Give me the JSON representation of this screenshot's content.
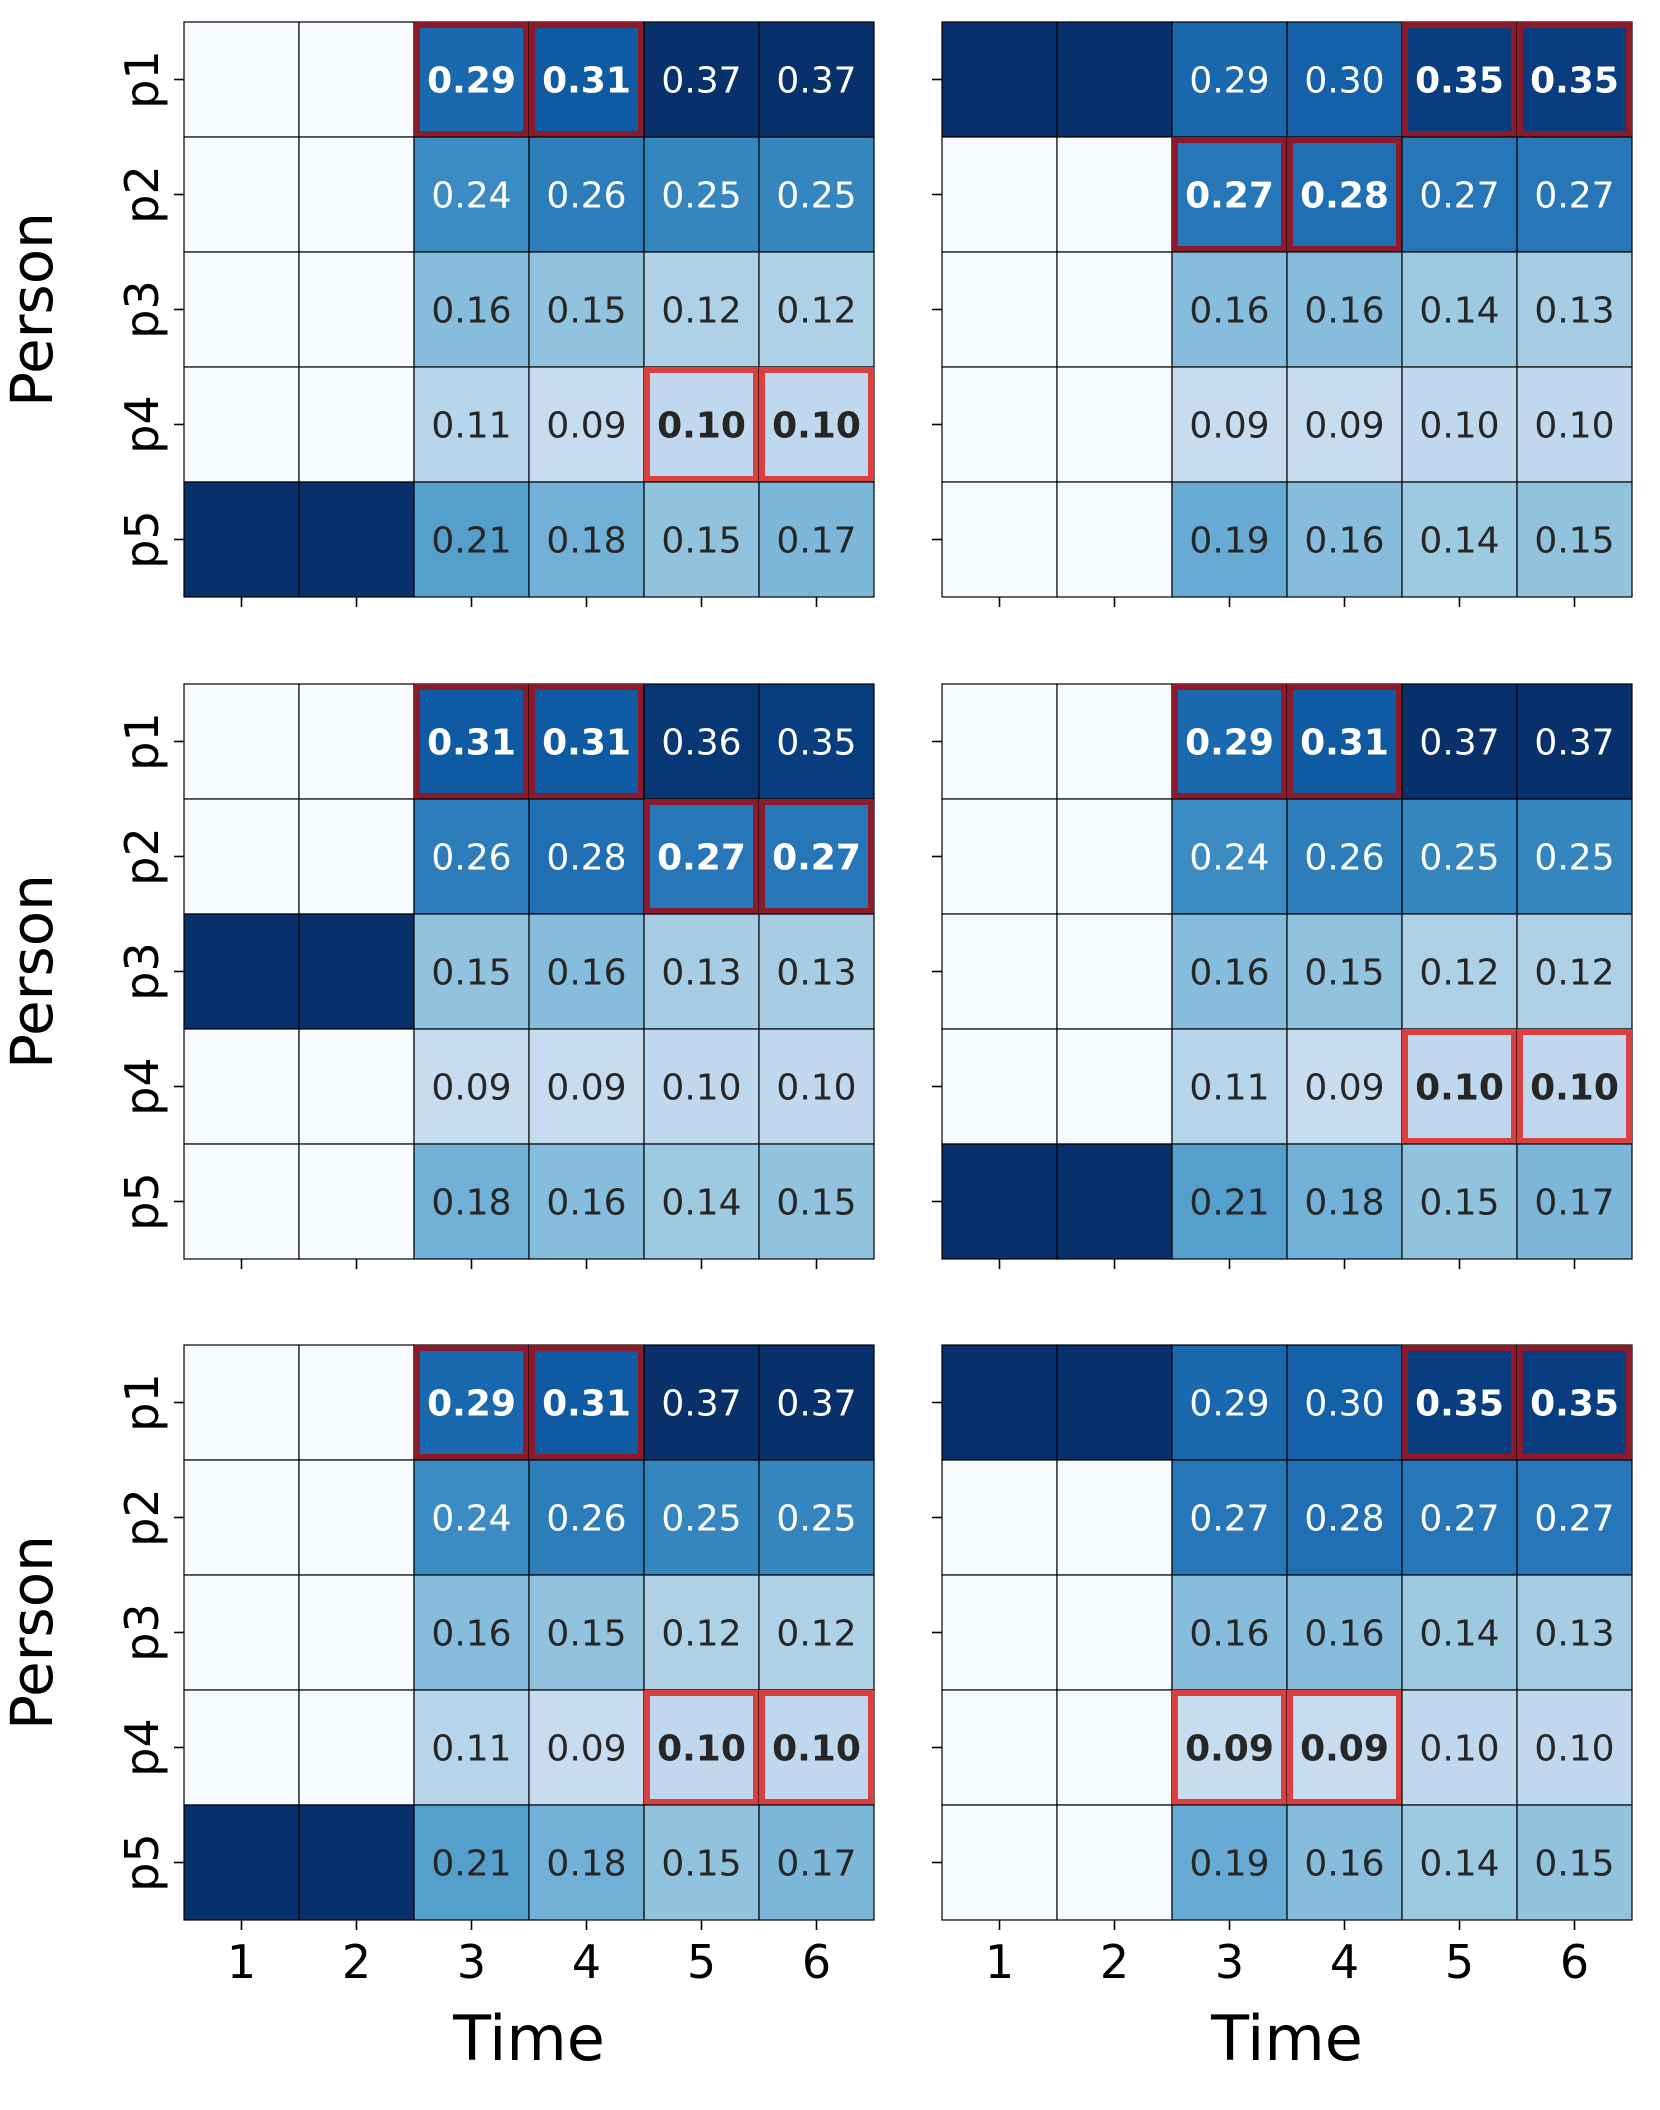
{
  "chart_data": [
    {
      "type": "heatmap",
      "title": "",
      "xlabel": "",
      "ylabel": "Person",
      "rows": [
        "p1",
        "p2",
        "p3",
        "p4",
        "p5"
      ],
      "cols": [
        "1",
        "2",
        "3",
        "4",
        "5",
        "6"
      ],
      "values": [
        [
          0.0,
          0.0,
          0.29,
          0.31,
          0.37,
          0.37
        ],
        [
          0.0,
          0.0,
          0.24,
          0.26,
          0.25,
          0.25
        ],
        [
          0.0,
          0.0,
          0.16,
          0.15,
          0.12,
          0.12
        ],
        [
          0.0,
          0.0,
          0.11,
          0.09,
          0.1,
          0.1
        ],
        [
          1.0,
          1.0,
          0.21,
          0.18,
          0.15,
          0.17
        ]
      ],
      "labels": [
        [
          "",
          "",
          "0.29",
          "0.31",
          "0.37",
          "0.37"
        ],
        [
          "",
          "",
          "0.24",
          "0.26",
          "0.25",
          "0.25"
        ],
        [
          "",
          "",
          "0.16",
          "0.15",
          "0.12",
          "0.12"
        ],
        [
          "",
          "",
          "0.11",
          "0.09",
          "0.10",
          "0.10"
        ],
        [
          "",
          "",
          "0.21",
          "0.18",
          "0.15",
          "0.17"
        ]
      ],
      "highlights": [
        [
          0,
          2
        ],
        [
          0,
          3
        ],
        [
          3,
          4
        ],
        [
          3,
          5
        ]
      ]
    },
    {
      "type": "heatmap",
      "title": "",
      "xlabel": "",
      "ylabel": "",
      "rows": [
        "p1",
        "p2",
        "p3",
        "p4",
        "p5"
      ],
      "cols": [
        "1",
        "2",
        "3",
        "4",
        "5",
        "6"
      ],
      "values": [
        [
          1.0,
          1.0,
          0.29,
          0.3,
          0.35,
          0.35
        ],
        [
          0.0,
          0.0,
          0.27,
          0.28,
          0.27,
          0.27
        ],
        [
          0.0,
          0.0,
          0.16,
          0.16,
          0.14,
          0.13
        ],
        [
          0.0,
          0.0,
          0.09,
          0.09,
          0.1,
          0.1
        ],
        [
          0.0,
          0.0,
          0.19,
          0.16,
          0.14,
          0.15
        ]
      ],
      "labels": [
        [
          "",
          "",
          "0.29",
          "0.30",
          "0.35",
          "0.35"
        ],
        [
          "",
          "",
          "0.27",
          "0.28",
          "0.27",
          "0.27"
        ],
        [
          "",
          "",
          "0.16",
          "0.16",
          "0.14",
          "0.13"
        ],
        [
          "",
          "",
          "0.09",
          "0.09",
          "0.10",
          "0.10"
        ],
        [
          "",
          "",
          "0.19",
          "0.16",
          "0.14",
          "0.15"
        ]
      ],
      "highlights": [
        [
          0,
          4
        ],
        [
          0,
          5
        ],
        [
          1,
          2
        ],
        [
          1,
          3
        ]
      ]
    },
    {
      "type": "heatmap",
      "title": "",
      "xlabel": "",
      "ylabel": "Person",
      "rows": [
        "p1",
        "p2",
        "p3",
        "p4",
        "p5"
      ],
      "cols": [
        "1",
        "2",
        "3",
        "4",
        "5",
        "6"
      ],
      "values": [
        [
          0.0,
          0.0,
          0.31,
          0.31,
          0.36,
          0.35
        ],
        [
          0.0,
          0.0,
          0.26,
          0.28,
          0.27,
          0.27
        ],
        [
          1.0,
          1.0,
          0.15,
          0.16,
          0.13,
          0.13
        ],
        [
          0.0,
          0.0,
          0.09,
          0.09,
          0.1,
          0.1
        ],
        [
          0.0,
          0.0,
          0.18,
          0.16,
          0.14,
          0.15
        ]
      ],
      "labels": [
        [
          "",
          "",
          "0.31",
          "0.31",
          "0.36",
          "0.35"
        ],
        [
          "",
          "",
          "0.26",
          "0.28",
          "0.27",
          "0.27"
        ],
        [
          "",
          "",
          "0.15",
          "0.16",
          "0.13",
          "0.13"
        ],
        [
          "",
          "",
          "0.09",
          "0.09",
          "0.10",
          "0.10"
        ],
        [
          "",
          "",
          "0.18",
          "0.16",
          "0.14",
          "0.15"
        ]
      ],
      "highlights": [
        [
          0,
          2
        ],
        [
          0,
          3
        ],
        [
          1,
          4
        ],
        [
          1,
          5
        ]
      ]
    },
    {
      "type": "heatmap",
      "title": "",
      "xlabel": "",
      "ylabel": "",
      "rows": [
        "p1",
        "p2",
        "p3",
        "p4",
        "p5"
      ],
      "cols": [
        "1",
        "2",
        "3",
        "4",
        "5",
        "6"
      ],
      "values": [
        [
          0.0,
          0.0,
          0.29,
          0.31,
          0.37,
          0.37
        ],
        [
          0.0,
          0.0,
          0.24,
          0.26,
          0.25,
          0.25
        ],
        [
          0.0,
          0.0,
          0.16,
          0.15,
          0.12,
          0.12
        ],
        [
          0.0,
          0.0,
          0.11,
          0.09,
          0.1,
          0.1
        ],
        [
          1.0,
          1.0,
          0.21,
          0.18,
          0.15,
          0.17
        ]
      ],
      "labels": [
        [
          "",
          "",
          "0.29",
          "0.31",
          "0.37",
          "0.37"
        ],
        [
          "",
          "",
          "0.24",
          "0.26",
          "0.25",
          "0.25"
        ],
        [
          "",
          "",
          "0.16",
          "0.15",
          "0.12",
          "0.12"
        ],
        [
          "",
          "",
          "0.11",
          "0.09",
          "0.10",
          "0.10"
        ],
        [
          "",
          "",
          "0.21",
          "0.18",
          "0.15",
          "0.17"
        ]
      ],
      "highlights": [
        [
          0,
          2
        ],
        [
          0,
          3
        ],
        [
          3,
          4
        ],
        [
          3,
          5
        ]
      ]
    },
    {
      "type": "heatmap",
      "title": "",
      "xlabel": "Time",
      "ylabel": "Person",
      "rows": [
        "p1",
        "p2",
        "p3",
        "p4",
        "p5"
      ],
      "cols": [
        "1",
        "2",
        "3",
        "4",
        "5",
        "6"
      ],
      "values": [
        [
          0.0,
          0.0,
          0.29,
          0.31,
          0.37,
          0.37
        ],
        [
          0.0,
          0.0,
          0.24,
          0.26,
          0.25,
          0.25
        ],
        [
          0.0,
          0.0,
          0.16,
          0.15,
          0.12,
          0.12
        ],
        [
          0.0,
          0.0,
          0.11,
          0.09,
          0.1,
          0.1
        ],
        [
          1.0,
          1.0,
          0.21,
          0.18,
          0.15,
          0.17
        ]
      ],
      "labels": [
        [
          "",
          "",
          "0.29",
          "0.31",
          "0.37",
          "0.37"
        ],
        [
          "",
          "",
          "0.24",
          "0.26",
          "0.25",
          "0.25"
        ],
        [
          "",
          "",
          "0.16",
          "0.15",
          "0.12",
          "0.12"
        ],
        [
          "",
          "",
          "0.11",
          "0.09",
          "0.10",
          "0.10"
        ],
        [
          "",
          "",
          "0.21",
          "0.18",
          "0.15",
          "0.17"
        ]
      ],
      "highlights": [
        [
          0,
          2
        ],
        [
          0,
          3
        ],
        [
          3,
          4
        ],
        [
          3,
          5
        ]
      ]
    },
    {
      "type": "heatmap",
      "title": "",
      "xlabel": "Time",
      "ylabel": "",
      "rows": [
        "p1",
        "p2",
        "p3",
        "p4",
        "p5"
      ],
      "cols": [
        "1",
        "2",
        "3",
        "4",
        "5",
        "6"
      ],
      "values": [
        [
          1.0,
          1.0,
          0.29,
          0.3,
          0.35,
          0.35
        ],
        [
          0.0,
          0.0,
          0.27,
          0.28,
          0.27,
          0.27
        ],
        [
          0.0,
          0.0,
          0.16,
          0.16,
          0.14,
          0.13
        ],
        [
          0.0,
          0.0,
          0.09,
          0.09,
          0.1,
          0.1
        ],
        [
          0.0,
          0.0,
          0.19,
          0.16,
          0.14,
          0.15
        ]
      ],
      "labels": [
        [
          "",
          "",
          "0.29",
          "0.30",
          "0.35",
          "0.35"
        ],
        [
          "",
          "",
          "0.27",
          "0.28",
          "0.27",
          "0.27"
        ],
        [
          "",
          "",
          "0.16",
          "0.16",
          "0.14",
          "0.13"
        ],
        [
          "",
          "",
          "0.09",
          "0.09",
          "0.10",
          "0.10"
        ],
        [
          "",
          "",
          "0.19",
          "0.16",
          "0.14",
          "0.15"
        ]
      ],
      "highlights": [
        [
          0,
          4
        ],
        [
          0,
          5
        ],
        [
          3,
          2
        ],
        [
          3,
          3
        ]
      ]
    }
  ],
  "colors": {
    "colormap": "Blues",
    "highlight_on_dark": "#8b1a2b",
    "highlight_on_light": "#d9403f",
    "grid_line": "#000000",
    "text_dark": "#262626",
    "text_light": "#ffffff"
  }
}
